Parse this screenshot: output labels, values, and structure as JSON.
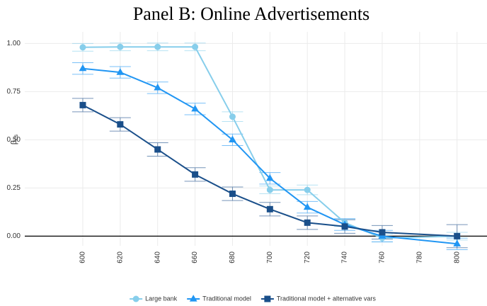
{
  "chart_data": {
    "type": "line",
    "title": "Panel B: Online Advertisements",
    "y_label": {
      "symbol": "β",
      "subscript": "cs"
    },
    "x": [
      600,
      620,
      640,
      660,
      680,
      700,
      720,
      740,
      760,
      800
    ],
    "series": [
      {
        "name": "Large bank",
        "color": "#87ceeb",
        "marker": "circle",
        "values": [
          0.98,
          0.982,
          0.982,
          0.982,
          0.62,
          0.24,
          0.24,
          0.07,
          -0.01,
          0.0
        ],
        "errors": [
          0.02,
          0.02,
          0.02,
          0.02,
          0.025,
          0.02,
          0.025,
          0.02,
          0.02,
          0.02
        ]
      },
      {
        "name": "Traditional model",
        "color": "#2196f3",
        "marker": "triangle",
        "values": [
          0.87,
          0.85,
          0.77,
          0.66,
          0.5,
          0.3,
          0.15,
          0.06,
          0.0,
          -0.04
        ],
        "errors": [
          0.03,
          0.03,
          0.03,
          0.03,
          0.03,
          0.03,
          0.03,
          0.03,
          0.03,
          0.03
        ]
      },
      {
        "name": "Traditional model + alternative vars",
        "color": "#1a4f8a",
        "marker": "square",
        "values": [
          0.68,
          0.58,
          0.45,
          0.32,
          0.22,
          0.14,
          0.07,
          0.05,
          0.02,
          0.0
        ],
        "errors": [
          0.035,
          0.035,
          0.035,
          0.035,
          0.035,
          0.035,
          0.035,
          0.035,
          0.035,
          0.06
        ]
      }
    ],
    "xlim": [
      569,
      816
    ],
    "ylim": [
      -0.05,
      1.06
    ],
    "xticks": [
      600,
      620,
      640,
      660,
      680,
      700,
      720,
      740,
      760,
      780,
      800
    ],
    "yticks": [
      {
        "value": 0,
        "label": "0.00"
      },
      {
        "value": 0.25,
        "label": "0.25"
      },
      {
        "value": 0.5,
        "label": "0.50"
      },
      {
        "value": 0.75,
        "label": "0.75"
      },
      {
        "value": 1,
        "label": "1.00"
      }
    ],
    "grid": true,
    "legend": "bottom"
  }
}
